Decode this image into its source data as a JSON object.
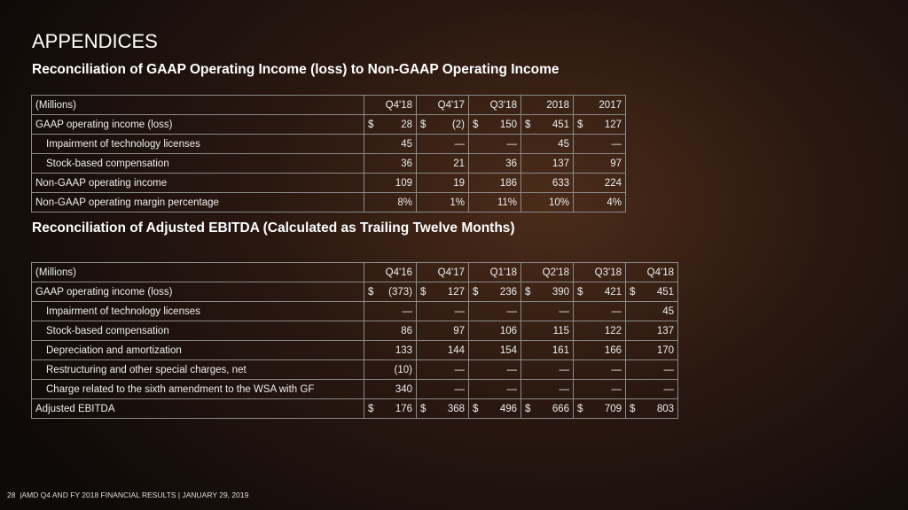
{
  "header": {
    "title": "APPENDICES"
  },
  "table1": {
    "title": "Reconciliation of GAAP Operating Income (loss) to Non-GAAP Operating Income",
    "currency_symbol": "$",
    "columns": [
      "(Millions)",
      "Q4'18",
      "Q4'17",
      "Q3'18",
      "2018",
      "2017"
    ],
    "rows": [
      {
        "label": "GAAP operating income (loss)",
        "currency": true,
        "values": [
          "28",
          "(2)",
          "150",
          "451",
          "127"
        ]
      },
      {
        "label": "Impairment of technology licenses",
        "indent": true,
        "values": [
          "45",
          "—",
          "—",
          "45",
          "—"
        ]
      },
      {
        "label": "Stock-based compensation",
        "indent": true,
        "values": [
          "36",
          "21",
          "36",
          "137",
          "97"
        ]
      },
      {
        "label": "Non-GAAP operating income",
        "values": [
          "109",
          "19",
          "186",
          "633",
          "224"
        ]
      },
      {
        "label": "Non-GAAP operating margin percentage",
        "values": [
          "8%",
          "1%",
          "11%",
          "10%",
          "4%"
        ]
      }
    ]
  },
  "table2": {
    "title": "Reconciliation of Adjusted EBITDA (Calculated as Trailing Twelve Months)",
    "currency_symbol": "$",
    "columns": [
      "(Millions)",
      "Q4'16",
      "Q4'17",
      "Q1'18",
      "Q2'18",
      "Q3'18",
      "Q4'18"
    ],
    "rows": [
      {
        "label": "GAAP operating income (loss)",
        "currency": true,
        "values": [
          "(373)",
          "127",
          "236",
          "390",
          "421",
          "451"
        ]
      },
      {
        "label": "Impairment of technology licenses",
        "indent": true,
        "values": [
          "—",
          "—",
          "—",
          "—",
          "—",
          "45"
        ]
      },
      {
        "label": "Stock-based compensation",
        "indent": true,
        "values": [
          "86",
          "97",
          "106",
          "115",
          "122",
          "137"
        ]
      },
      {
        "label": "Depreciation and amortization",
        "indent": true,
        "values": [
          "133",
          "144",
          "154",
          "161",
          "166",
          "170"
        ]
      },
      {
        "label": "Restructuring and other special charges, net",
        "indent": true,
        "values": [
          "(10)",
          "—",
          "—",
          "—",
          "—",
          "—"
        ]
      },
      {
        "label": "Charge related to the sixth amendment to the WSA with GF",
        "indent": true,
        "values": [
          "340",
          "—",
          "—",
          "—",
          "—",
          "—"
        ]
      },
      {
        "label": "Adjusted EBITDA",
        "currency": true,
        "values": [
          "176",
          "368",
          "496",
          "666",
          "709",
          "803"
        ]
      }
    ]
  },
  "footer": {
    "page": "28",
    "text": "|AMD Q4 AND FY 2018 FINANCIAL RESULTS |  JANUARY 29, 2019"
  }
}
